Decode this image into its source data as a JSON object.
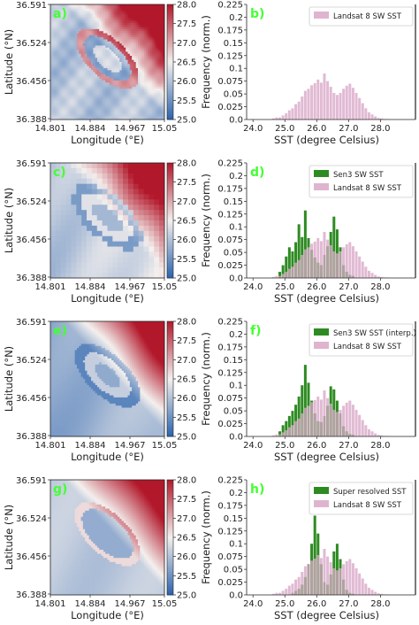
{
  "colors": {
    "hist_green": "#2e8b22",
    "hist_pink": "#d9a7c7",
    "panel_letter": "#44ff33",
    "cmap_low": "#2b63ad",
    "cmap_mid": "#f4f0ee",
    "cmap_high": "#b2182b"
  },
  "chart_data": [
    {
      "type": "heatmap",
      "panel": "a)",
      "xlabel": "Longitude (°E)",
      "ylabel": "Latitude (°N)",
      "xticks": [
        "14.801",
        "14.884",
        "14.967",
        "15.05"
      ],
      "yticks": [
        "36.591",
        "36.524",
        "36.456",
        "36.388"
      ],
      "colorbar": {
        "ticks": [
          "28.0",
          "27.5",
          "27.0",
          "26.5",
          "26.0",
          "25.5",
          "25.0"
        ],
        "range": [
          25.0,
          28.0
        ]
      },
      "field": "landsat"
    },
    {
      "type": "bar",
      "panel": "b)",
      "xlabel": "SST (degree Celsius)",
      "ylabel": "Frequency (norm.)",
      "xticks": [
        "24.0",
        "25.0",
        "26.0",
        "27.0",
        "28.0"
      ],
      "xlim": [
        23.8,
        29.1
      ],
      "yticks": [
        "0.0",
        "0.025",
        "0.05",
        "0.075",
        "0.1",
        "0.125",
        "0.15",
        "0.175",
        "0.2",
        "0.225"
      ],
      "ylim": [
        0,
        0.225
      ],
      "series": [
        {
          "name": "Landsat 8 SW SST",
          "color": "pink",
          "start": 24.5,
          "step": 0.1,
          "values": [
            0,
            0.002,
            0.004,
            0.004,
            0.008,
            0.012,
            0.018,
            0.022,
            0.03,
            0.035,
            0.045,
            0.056,
            0.06,
            0.067,
            0.071,
            0.078,
            0.072,
            0.09,
            0.075,
            0.064,
            0.052,
            0.048,
            0.052,
            0.06,
            0.066,
            0.07,
            0.062,
            0.052,
            0.042,
            0.032,
            0.022,
            0.014,
            0.01,
            0.006,
            0.003,
            0.002,
            0.001,
            0.001
          ]
        }
      ]
    },
    {
      "type": "heatmap",
      "panel": "c)",
      "xlabel": "Longitude (°E)",
      "ylabel": "Latitude (°N)",
      "xticks": [
        "14.801",
        "14.884",
        "14.967",
        "15.05"
      ],
      "yticks": [
        "36.591",
        "36.524",
        "36.456",
        "36.388"
      ],
      "colorbar": {
        "ticks": [
          "28.0",
          "27.5",
          "27.0",
          "26.5",
          "26.0",
          "25.5",
          "25.0"
        ],
        "range": [
          25.0,
          28.0
        ]
      },
      "field": "sen3"
    },
    {
      "type": "bar",
      "panel": "d)",
      "xlabel": "SST (degree Celsius)",
      "ylabel": "Frequency (norm.)",
      "xticks": [
        "24.0",
        "25.0",
        "26.0",
        "27.0",
        "28.0"
      ],
      "xlim": [
        23.8,
        29.1
      ],
      "yticks": [
        "0.0",
        "0.025",
        "0.05",
        "0.075",
        "0.1",
        "0.125",
        "0.15",
        "0.175",
        "0.2",
        "0.225"
      ],
      "ylim": [
        0,
        0.225
      ],
      "series": [
        {
          "name": "Sen3 SW SST",
          "color": "green",
          "start": 24.8,
          "step": 0.1,
          "values": [
            0.012,
            0.025,
            0.042,
            0.06,
            0.052,
            0.07,
            0.105,
            0.08,
            0.132,
            0.078,
            0.055,
            0.04,
            0.03,
            0.025,
            0.045,
            0.062,
            0.09,
            0.12,
            0.095,
            0.06,
            0.025,
            0.012,
            0.006,
            0.004
          ]
        },
        {
          "name": "Landsat 8 SW SST",
          "color": "pink",
          "start": 24.5,
          "step": 0.1,
          "values": [
            0,
            0.002,
            0.004,
            0.004,
            0.008,
            0.012,
            0.018,
            0.022,
            0.03,
            0.035,
            0.045,
            0.056,
            0.06,
            0.067,
            0.071,
            0.078,
            0.072,
            0.09,
            0.075,
            0.064,
            0.052,
            0.048,
            0.052,
            0.06,
            0.066,
            0.07,
            0.062,
            0.052,
            0.042,
            0.032,
            0.022,
            0.014,
            0.01,
            0.006,
            0.003,
            0.002,
            0.001,
            0.001
          ]
        }
      ]
    },
    {
      "type": "heatmap",
      "panel": "e)",
      "xlabel": "Longitude (°E)",
      "ylabel": "Latitude (°N)",
      "xticks": [
        "14.801",
        "14.884",
        "14.967",
        "15.05"
      ],
      "yticks": [
        "36.591",
        "36.524",
        "36.456",
        "36.388"
      ],
      "colorbar": {
        "ticks": [
          "28.0",
          "27.5",
          "27.0",
          "26.5",
          "26.0",
          "25.5",
          "25.0"
        ],
        "range": [
          25.0,
          28.0
        ]
      },
      "field": "interp"
    },
    {
      "type": "bar",
      "panel": "f)",
      "xlabel": "SST (degree Celsius)",
      "ylabel": "Frequency (norm.)",
      "xticks": [
        "24.0",
        "25.0",
        "26.0",
        "27.0",
        "28.0"
      ],
      "xlim": [
        23.8,
        29.1
      ],
      "yticks": [
        "0.0",
        "0.025",
        "0.05",
        "0.075",
        "0.1",
        "0.125",
        "0.15",
        "0.175",
        "0.2",
        "0.225"
      ],
      "ylim": [
        0,
        0.225
      ],
      "series": [
        {
          "name": "Sen3 SW SST (interp.)",
          "color": "green",
          "start": 24.8,
          "step": 0.1,
          "values": [
            0.01,
            0.022,
            0.03,
            0.04,
            0.05,
            0.062,
            0.078,
            0.1,
            0.14,
            0.105,
            0.07,
            0.045,
            0.03,
            0.028,
            0.04,
            0.06,
            0.098,
            0.092,
            0.07,
            0.045,
            0.02,
            0.01,
            0.005,
            0.003
          ]
        },
        {
          "name": "Landsat 8 SW SST",
          "color": "pink",
          "start": 24.5,
          "step": 0.1,
          "values": [
            0,
            0.002,
            0.004,
            0.004,
            0.008,
            0.012,
            0.018,
            0.022,
            0.03,
            0.035,
            0.045,
            0.056,
            0.06,
            0.067,
            0.071,
            0.078,
            0.072,
            0.09,
            0.075,
            0.064,
            0.052,
            0.048,
            0.052,
            0.06,
            0.066,
            0.07,
            0.062,
            0.052,
            0.042,
            0.032,
            0.022,
            0.014,
            0.01,
            0.006,
            0.003,
            0.002,
            0.001,
            0.001
          ]
        }
      ]
    },
    {
      "type": "heatmap",
      "panel": "g)",
      "xlabel": "Longitude (°E)",
      "ylabel": "Latitude (°N)",
      "xticks": [
        "14.801",
        "14.884",
        "14.967",
        "15.05"
      ],
      "yticks": [
        "36.591",
        "36.524",
        "36.456",
        "36.388"
      ],
      "colorbar": {
        "ticks": [
          "28.0",
          "27.5",
          "27.0",
          "26.5",
          "26.0",
          "25.5",
          "25.0"
        ],
        "range": [
          25.0,
          28.0
        ]
      },
      "field": "superres"
    },
    {
      "type": "bar",
      "panel": "h)",
      "xlabel": "SST (degree Celsius)",
      "ylabel": "Frequency (norm.)",
      "xticks": [
        "24.0",
        "25.0",
        "26.0",
        "27.0",
        "28.0"
      ],
      "xlim": [
        23.8,
        29.1
      ],
      "yticks": [
        "0.0",
        "0.025",
        "0.05",
        "0.075",
        "0.1",
        "0.125",
        "0.15",
        "0.175",
        "0.2",
        "0.225"
      ],
      "ylim": [
        0,
        0.225
      ],
      "series": [
        {
          "name": "Super resolved SST",
          "color": "green",
          "start": 25.2,
          "step": 0.1,
          "values": [
            0.004,
            0.008,
            0.012,
            0.02,
            0.035,
            0.06,
            0.1,
            0.155,
            0.12,
            0.06,
            0.025,
            0.02,
            0.04,
            0.085,
            0.1,
            0.07,
            0.03,
            0.01,
            0.004,
            0.002
          ]
        },
        {
          "name": "Landsat 8 SW SST",
          "color": "pink",
          "start": 24.5,
          "step": 0.1,
          "values": [
            0,
            0.002,
            0.004,
            0.004,
            0.008,
            0.012,
            0.018,
            0.022,
            0.03,
            0.035,
            0.045,
            0.056,
            0.06,
            0.067,
            0.071,
            0.078,
            0.072,
            0.09,
            0.075,
            0.064,
            0.052,
            0.048,
            0.052,
            0.06,
            0.066,
            0.07,
            0.062,
            0.052,
            0.042,
            0.032,
            0.022,
            0.014,
            0.01,
            0.006,
            0.003,
            0.002,
            0.001,
            0.001
          ]
        }
      ]
    }
  ]
}
